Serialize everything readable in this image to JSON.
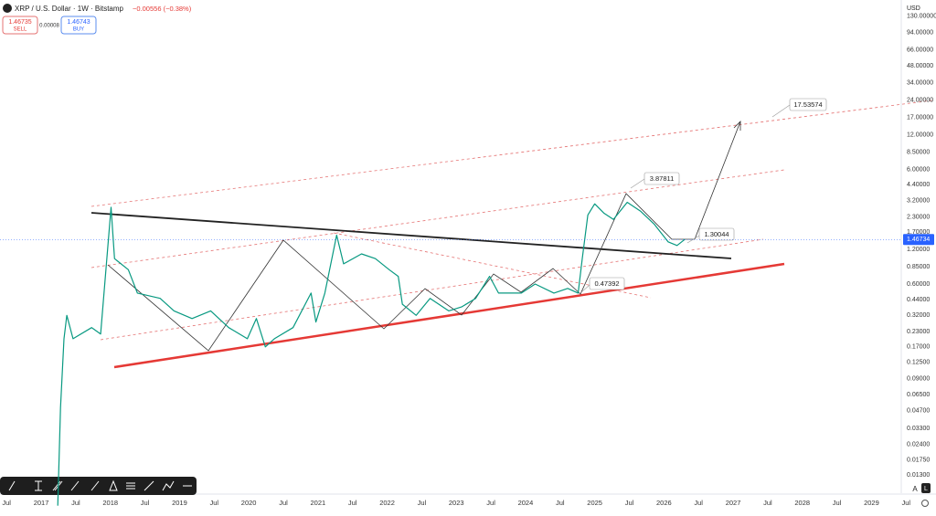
{
  "chart_data": {
    "type": "line",
    "title": "XRP / U.S. Dollar · 1W · Bitstamp",
    "change": "−0.00556 (−0.38%)",
    "sell": {
      "price": "1.46735",
      "label": "SELL"
    },
    "spread": "0.00008",
    "buy": {
      "price": "1.46743",
      "label": "BUY"
    },
    "currency": "USD",
    "yscale": "log",
    "grid": false,
    "color": "#089981",
    "last_price": {
      "value": 1.46734,
      "label": "1.46734"
    },
    "annotations": [
      "17.53574",
      "3.87811",
      "1.30044",
      "0.47392"
    ],
    "x": [
      2017.24,
      2017.28,
      2017.33,
      2017.37,
      2017.46,
      2017.73,
      2017.86,
      2018.01,
      2018.06,
      2018.26,
      2018.39,
      2018.72,
      2018.92,
      2019.18,
      2019.45,
      2019.71,
      2019.98,
      2020.11,
      2020.24,
      2020.37,
      2020.64,
      2020.9,
      2020.97,
      2021.1,
      2021.27,
      2021.37,
      2021.63,
      2021.83,
      2022.03,
      2022.16,
      2022.22,
      2022.42,
      2022.62,
      2022.89,
      2023.08,
      2023.28,
      2023.48,
      2023.61,
      2023.94,
      2024.14,
      2024.41,
      2024.61,
      2024.76,
      2024.82,
      2024.9,
      2025.0,
      2025.13,
      2025.27,
      2025.47,
      2025.66,
      2025.86,
      2026.06,
      2026.19,
      2026.3
    ],
    "values": [
      0.007,
      0.05,
      0.2,
      0.32,
      0.2,
      0.25,
      0.22,
      2.8,
      1.0,
      0.8,
      0.5,
      0.45,
      0.35,
      0.3,
      0.35,
      0.25,
      0.2,
      0.3,
      0.17,
      0.2,
      0.25,
      0.5,
      0.28,
      0.5,
      1.6,
      0.9,
      1.1,
      1.0,
      0.8,
      0.7,
      0.4,
      0.32,
      0.45,
      0.35,
      0.38,
      0.45,
      0.7,
      0.5,
      0.5,
      0.6,
      0.5,
      0.55,
      0.5,
      1.0,
      2.4,
      3.0,
      2.5,
      2.2,
      3.1,
      2.6,
      2.0,
      1.4,
      1.3,
      1.46734
    ],
    "xlim": [
      2016.405,
      2029.43
    ],
    "ylim": [
      0.009,
      180
    ],
    "xticks": [
      {
        "value": 2016.5,
        "label": "Jul"
      },
      {
        "value": 2017,
        "label": "2017"
      },
      {
        "value": 2017.5,
        "label": "Jul"
      },
      {
        "value": 2018,
        "label": "2018"
      },
      {
        "value": 2018.5,
        "label": "Jul"
      },
      {
        "value": 2019,
        "label": "2019"
      },
      {
        "value": 2019.5,
        "label": "Jul"
      },
      {
        "value": 2020,
        "label": "2020"
      },
      {
        "value": 2020.5,
        "label": "Jul"
      },
      {
        "value": 2021,
        "label": "2021"
      },
      {
        "value": 2021.5,
        "label": "Jul"
      },
      {
        "value": 2022,
        "label": "2022"
      },
      {
        "value": 2022.5,
        "label": "Jul"
      },
      {
        "value": 2023,
        "label": "2023"
      },
      {
        "value": 2023.5,
        "label": "Jul"
      },
      {
        "value": 2024,
        "label": "2024"
      },
      {
        "value": 2024.5,
        "label": "Jul"
      },
      {
        "value": 2025,
        "label": "2025"
      },
      {
        "value": 2025.5,
        "label": "Jul"
      },
      {
        "value": 2026,
        "label": "2026"
      },
      {
        "value": 2026.5,
        "label": "Jul"
      },
      {
        "value": 2027,
        "label": "2027"
      },
      {
        "value": 2027.5,
        "label": "Jul"
      },
      {
        "value": 2028,
        "label": "2028"
      },
      {
        "value": 2028.5,
        "label": "Jul"
      },
      {
        "value": 2029,
        "label": "2029"
      },
      {
        "value": 2029.5,
        "label": "Jul"
      }
    ],
    "yticks": [
      {
        "value": 130,
        "label": "130.00000"
      },
      {
        "value": 94,
        "label": "94.00000"
      },
      {
        "value": 66,
        "label": "66.00000"
      },
      {
        "value": 48,
        "label": "48.00000"
      },
      {
        "value": 34,
        "label": "34.00000"
      },
      {
        "value": 24,
        "label": "24.00000"
      },
      {
        "value": 17,
        "label": "17.00000"
      },
      {
        "value": 12,
        "label": "12.00000"
      },
      {
        "value": 8.5,
        "label": "8.50000"
      },
      {
        "value": 6,
        "label": "6.00000"
      },
      {
        "value": 4.4,
        "label": "4.40000"
      },
      {
        "value": 3.2,
        "label": "3.20000"
      },
      {
        "value": 2.3,
        "label": "2.30000"
      },
      {
        "value": 1.7,
        "label": "1.70000"
      },
      {
        "value": 1.2,
        "label": "1.20000"
      },
      {
        "value": 0.85,
        "label": "0.85000"
      },
      {
        "value": 0.6,
        "label": "0.60000"
      },
      {
        "value": 0.44,
        "label": "0.44000"
      },
      {
        "value": 0.32,
        "label": "0.32000"
      },
      {
        "value": 0.23,
        "label": "0.23000"
      },
      {
        "value": 0.17,
        "label": "0.17000"
      },
      {
        "value": 0.125,
        "label": "0.12500"
      },
      {
        "value": 0.09,
        "label": "0.09000"
      },
      {
        "value": 0.065,
        "label": "0.06500"
      },
      {
        "value": 0.047,
        "label": "0.04700"
      },
      {
        "value": 0.033,
        "label": "0.03300"
      },
      {
        "value": 0.024,
        "label": "0.02400"
      },
      {
        "value": 0.0175,
        "label": "0.01750"
      },
      {
        "value": 0.013,
        "label": "0.01300"
      }
    ]
  }
}
